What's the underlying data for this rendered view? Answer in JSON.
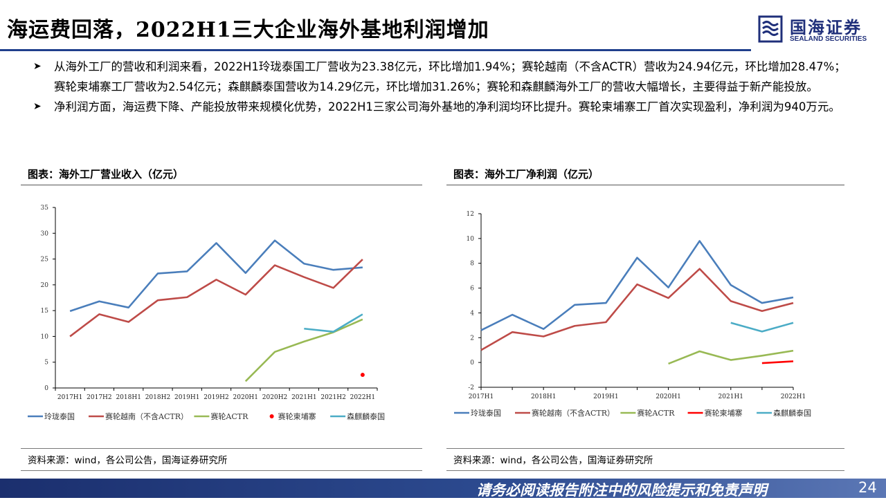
{
  "header": {
    "title": "海运费回落，2022H1三大企业海外基地利润增加",
    "logo_cn": "国海证券",
    "logo_en": "SEALAND SECURITIES"
  },
  "bullets": [
    "从海外工厂的营收和利润来看，2022H1玲珑泰国工厂营收为23.38亿元，环比增加1.94%；赛轮越南（不含ACTR）营收为24.94亿元，环比增加28.47%；赛轮柬埔寨工厂营收为2.54亿元；森麒麟泰国营收为14.29亿元，环比增加31.26%；赛轮和森麒麟海外工厂的营收大幅增长，主要得益于新产能投放。",
    "净利润方面，海运费下降、产能投放带来规模化优势，2022H1三家公司海外基地的净利润均环比提升。赛轮柬埔寨工厂首次实现盈利，净利润为940万元。"
  ],
  "bullet_icon": "arrow-right-icon",
  "charts": [
    {
      "heading": "图表：海外工厂营业收入（亿元）",
      "source": "资料来源：wind，各公司公告，国海证券研究所"
    },
    {
      "heading": "图表：海外工厂净利润（亿元）",
      "source": "资料来源：wind，各公司公告，国海证券研究所"
    }
  ],
  "chart_data": [
    {
      "type": "line",
      "title": "",
      "ylim": [
        0,
        35
      ],
      "yticks": [
        0,
        5,
        10,
        15,
        20,
        25,
        30,
        35
      ],
      "categories": [
        "2017H1",
        "2017H2",
        "2018H1",
        "2018H2",
        "2019H1",
        "2019H2",
        "2020H1",
        "2020H2",
        "2021H1",
        "2021H2",
        "2022H1"
      ],
      "x_tick_labels": [
        "2017H1",
        "2017H2",
        "2018H1",
        "2018H2",
        "2019H1",
        "2019H2",
        "2020H1",
        "2020H2",
        "2021H1",
        "2021H2",
        "2022H1"
      ],
      "legend": "bottom",
      "series": [
        {
          "name": "玲珑泰国",
          "color": "#4a7ebb",
          "values": [
            14.9,
            16.8,
            15.6,
            22.2,
            22.6,
            28.1,
            22.3,
            28.6,
            24.1,
            22.9,
            23.38
          ]
        },
        {
          "name": "赛轮越南（不含ACTR）",
          "color": "#be4b48",
          "values": [
            10.0,
            14.3,
            12.8,
            17.0,
            17.6,
            21.0,
            18.1,
            23.8,
            21.5,
            19.4,
            24.94
          ]
        },
        {
          "name": "赛轮ACTR",
          "color": "#98b954",
          "values": [
            null,
            null,
            null,
            null,
            null,
            null,
            1.3,
            7.0,
            9.0,
            10.8,
            13.3
          ]
        },
        {
          "name": "赛轮柬埔寨",
          "color": "#ff0000",
          "marker": "dot",
          "values": [
            null,
            null,
            null,
            null,
            null,
            null,
            null,
            null,
            null,
            null,
            2.54
          ]
        },
        {
          "name": "森麒麟泰国",
          "color": "#4bacc6",
          "values": [
            null,
            null,
            null,
            null,
            null,
            null,
            null,
            null,
            11.5,
            10.9,
            14.29
          ]
        }
      ]
    },
    {
      "type": "line",
      "title": "",
      "ylim": [
        -2,
        12
      ],
      "yticks": [
        -2,
        0,
        2,
        4,
        6,
        8,
        10,
        12
      ],
      "categories": [
        "2017H1",
        "2017H2",
        "2018H1",
        "2018H2",
        "2019H1",
        "2019H2",
        "2020H1",
        "2020H2",
        "2021H1",
        "2021H2",
        "2022H1"
      ],
      "x_tick_labels": [
        "2017H1",
        "",
        "2018H1",
        "",
        "2019H1",
        "",
        "2020H1",
        "",
        "2021H1",
        "",
        "2022H1"
      ],
      "legend": "bottom",
      "series": [
        {
          "name": "玲珑泰国",
          "color": "#4a7ebb",
          "values": [
            2.6,
            3.85,
            2.7,
            4.65,
            4.8,
            8.45,
            6.05,
            9.8,
            6.25,
            4.8,
            5.25
          ]
        },
        {
          "name": "赛轮越南（不含ACTR）",
          "color": "#be4b48",
          "values": [
            1.0,
            2.45,
            2.1,
            2.95,
            3.25,
            6.3,
            5.2,
            7.55,
            4.95,
            4.15,
            4.8
          ]
        },
        {
          "name": "赛轮ACTR",
          "color": "#98b954",
          "values": [
            null,
            null,
            null,
            null,
            null,
            null,
            -0.1,
            0.9,
            0.2,
            0.55,
            0.95
          ]
        },
        {
          "name": "赛轮柬埔寨",
          "color": "#ff0000",
          "values": [
            null,
            null,
            null,
            null,
            null,
            null,
            null,
            null,
            null,
            -0.05,
            0.094
          ]
        },
        {
          "name": "森麒麟泰国",
          "color": "#4bacc6",
          "values": [
            null,
            null,
            null,
            null,
            null,
            null,
            null,
            null,
            3.2,
            2.5,
            3.2
          ]
        }
      ]
    }
  ],
  "footer": {
    "disclaimer": "请务必阅读报告附注中的风险提示和免责声明",
    "page": "24"
  }
}
